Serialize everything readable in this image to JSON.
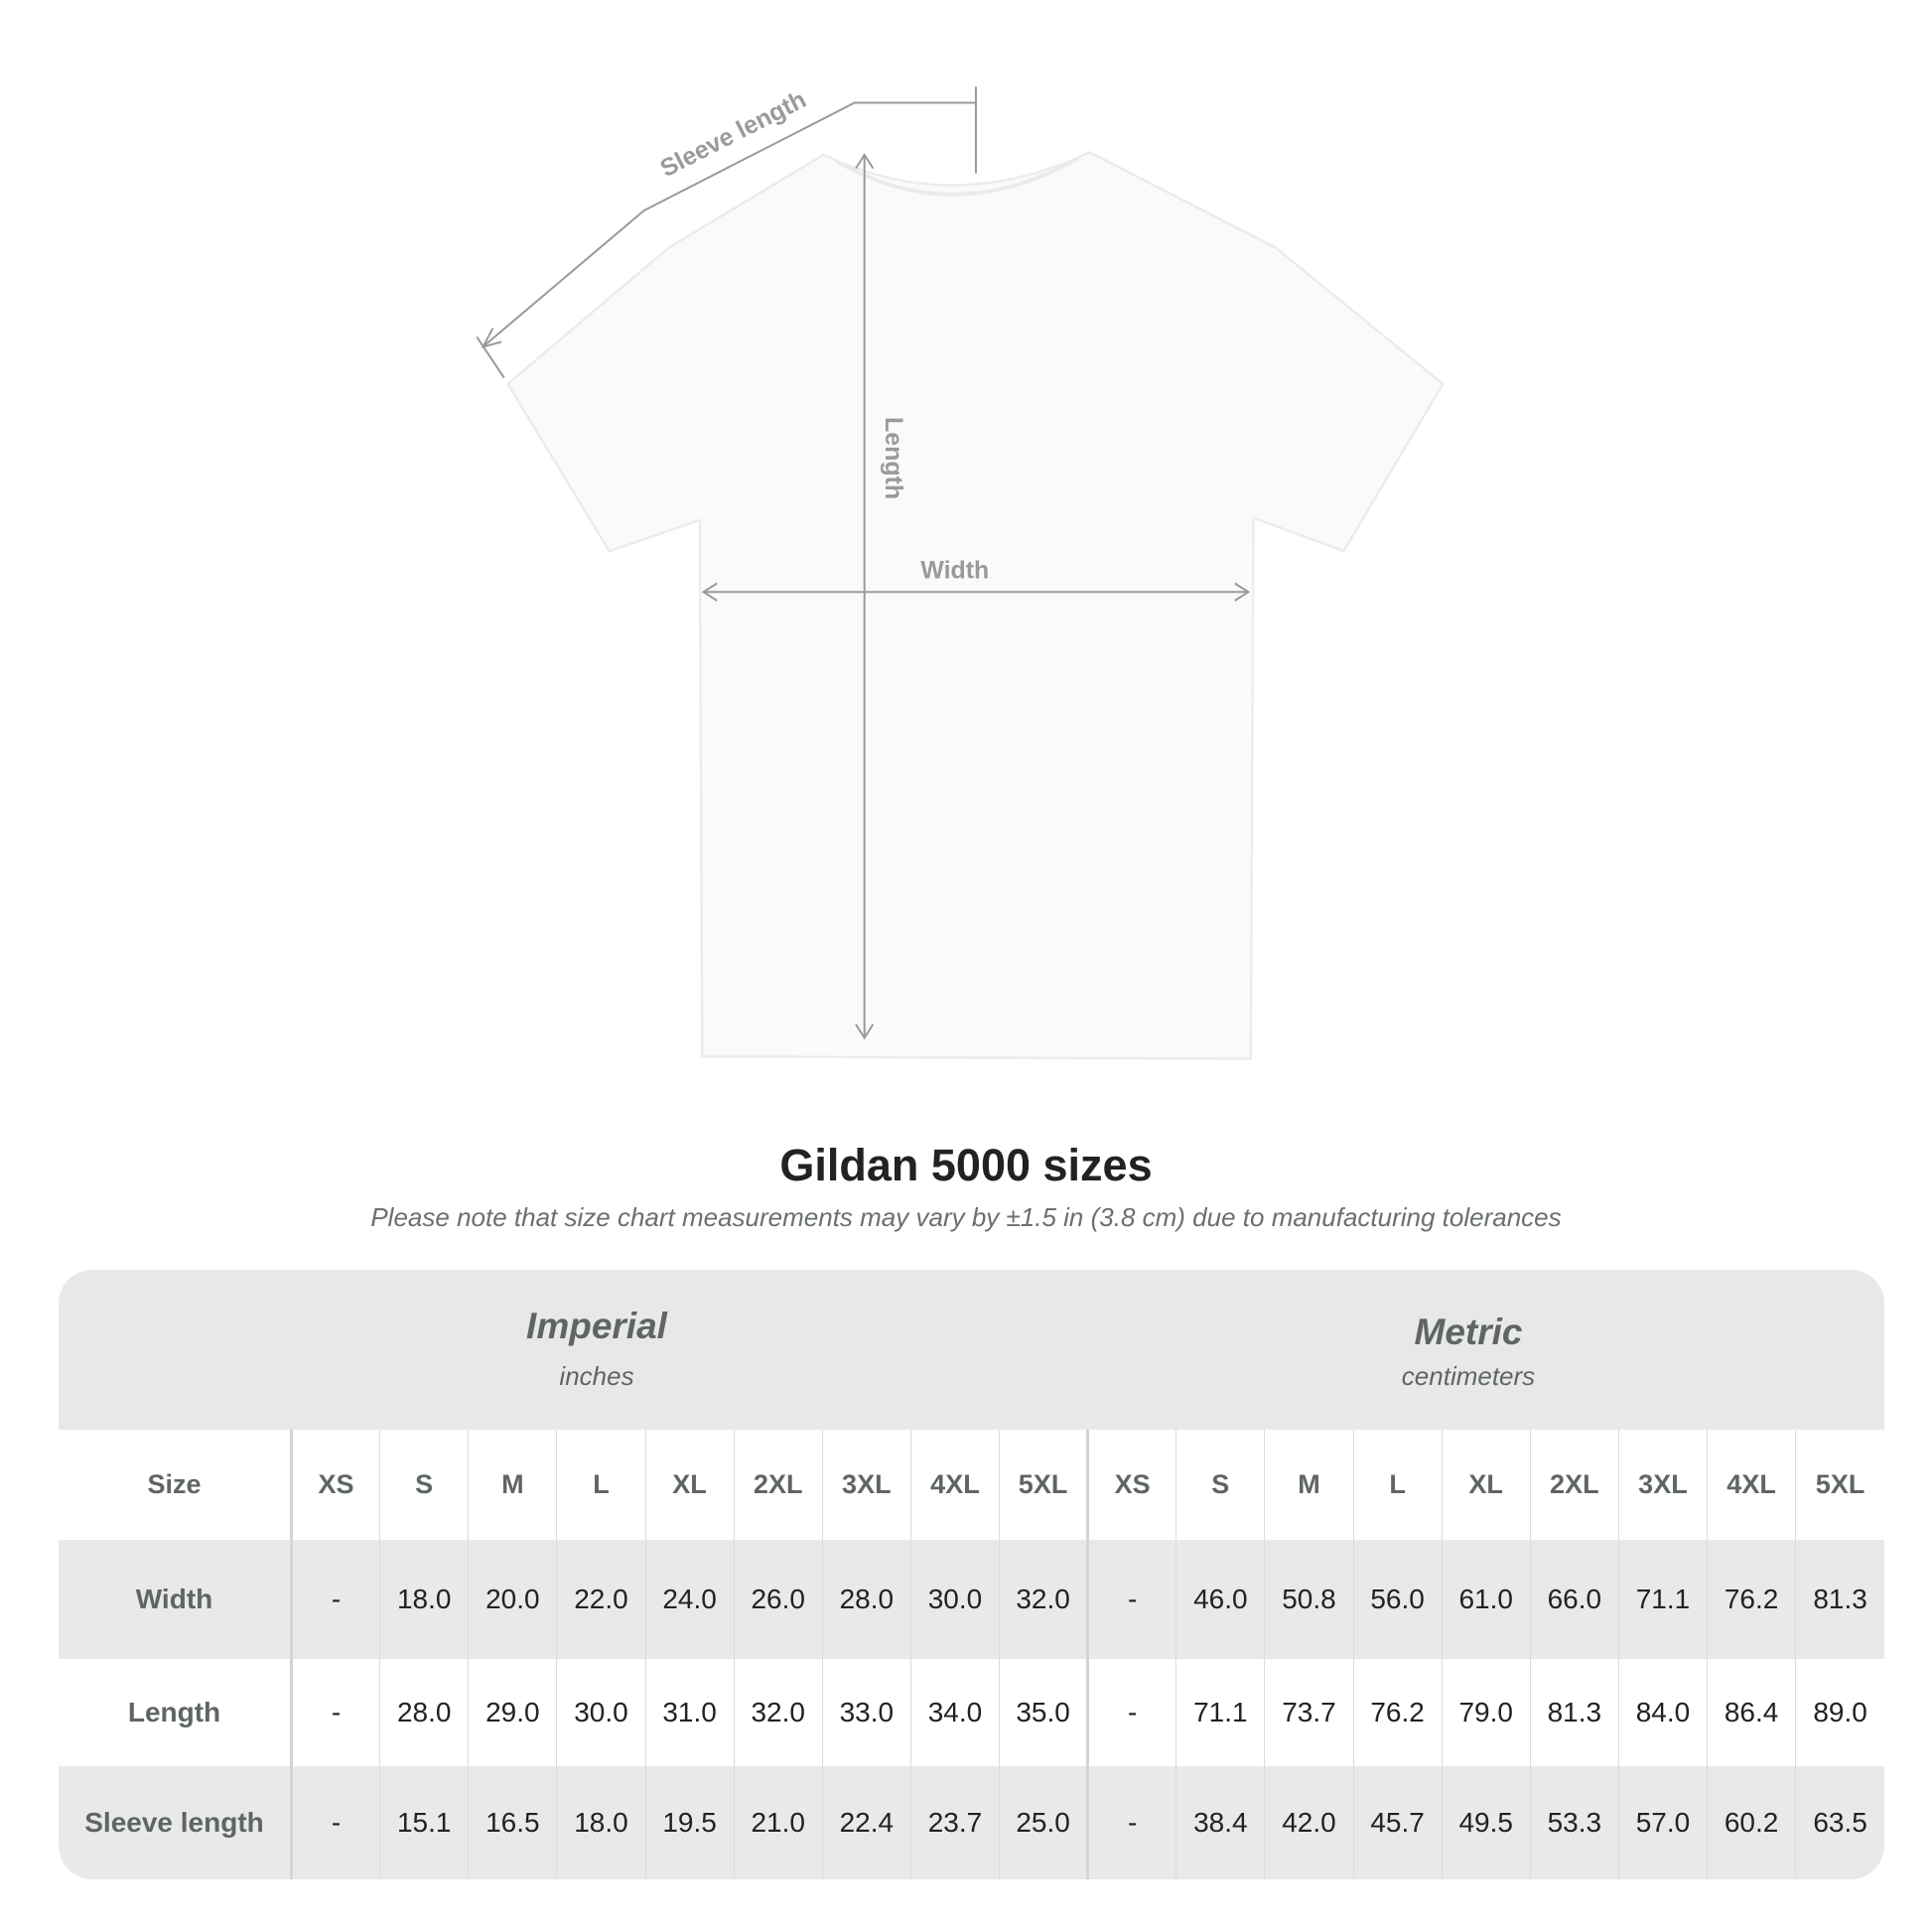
{
  "diagram": {
    "sleeve_label": "Sleeve length",
    "length_label": "Length",
    "width_label": "Width"
  },
  "title": "Gildan 5000 sizes",
  "note": "Please note that size chart measurements may vary by ±1.5 in (3.8 cm) due to manufacturing tolerances",
  "imperial": {
    "heading": "Imperial",
    "unit": "inches"
  },
  "metric": {
    "heading": "Metric",
    "unit": "centimeters"
  },
  "size_label": "Size",
  "sizes": [
    "XS",
    "S",
    "M",
    "L",
    "XL",
    "2XL",
    "3XL",
    "4XL",
    "5XL"
  ],
  "rows": [
    {
      "label": "Width",
      "imperial": [
        "-",
        "18.0",
        "20.0",
        "22.0",
        "24.0",
        "26.0",
        "28.0",
        "30.0",
        "32.0"
      ],
      "metric": [
        "-",
        "46.0",
        "50.8",
        "56.0",
        "61.0",
        "66.0",
        "71.1",
        "76.2",
        "81.3"
      ]
    },
    {
      "label": "Length",
      "imperial": [
        "-",
        "28.0",
        "29.0",
        "30.0",
        "31.0",
        "32.0",
        "33.0",
        "34.0",
        "35.0"
      ],
      "metric": [
        "-",
        "71.1",
        "73.7",
        "76.2",
        "79.0",
        "81.3",
        "84.0",
        "86.4",
        "89.0"
      ]
    },
    {
      "label": "Sleeve length",
      "imperial": [
        "-",
        "15.1",
        "16.5",
        "18.0",
        "19.5",
        "21.0",
        "22.4",
        "23.7",
        "25.0"
      ],
      "metric": [
        "-",
        "38.4",
        "42.0",
        "45.7",
        "49.5",
        "53.3",
        "57.0",
        "60.2",
        "63.5"
      ]
    }
  ],
  "colors": {
    "band": "#e8e8e8",
    "label_text": "#5f6566",
    "value_text": "#222222",
    "measure_line": "#9a9a9a"
  }
}
